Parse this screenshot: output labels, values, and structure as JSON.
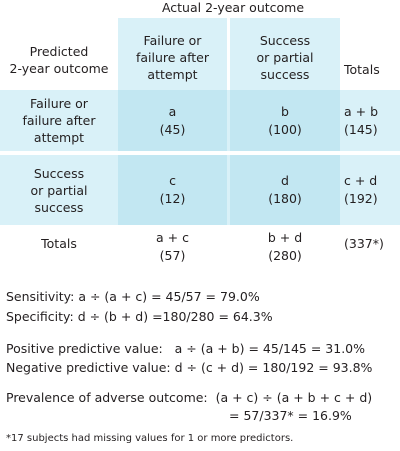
{
  "table": {
    "top_header": "Actual 2-year outcome",
    "col1_header": [
      "Failure or",
      "failure after",
      "attempt"
    ],
    "col2_header": [
      "Success",
      "or partial",
      "success"
    ],
    "row_header": [
      "Predicted",
      "2-year outcome"
    ],
    "totals_header": "Totals",
    "row1_label": [
      "Failure or",
      "failure after",
      "attempt"
    ],
    "row2_label": [
      "Success",
      "or partial",
      "success"
    ],
    "cells": {
      "a": {
        "letter": "a",
        "value": "(45)"
      },
      "b": {
        "letter": "b",
        "value": "(100)"
      },
      "c": {
        "letter": "c",
        "value": "(12)"
      },
      "d": {
        "letter": "d",
        "value": "(180)"
      }
    },
    "row_totals": [
      {
        "formula": "a + b",
        "value": "(145)"
      },
      {
        "formula": "c + d",
        "value": "(192)"
      }
    ],
    "bottom_totals_label": "Totals",
    "col_totals": [
      {
        "formula": "a + c",
        "value": "(57)"
      },
      {
        "formula": "b + d",
        "value": "(280)"
      }
    ],
    "grand_total": "(337*)"
  },
  "metrics": {
    "sensitivity": "Sensitivity: a ÷ (a + c) = 45/57 = 79.0%",
    "specificity": "Specificity: d ÷ (b + d) =180/280 = 64.3%",
    "ppv": "Positive predictive value:   a ÷ (a + b) = 45/145 = 31.0%",
    "npv": "Negative predictive value: d ÷ (c + d) = 180/192 = 93.8%",
    "prevalence_1": "Prevalence of adverse outcome:  (a + c) ÷ (a + b + c + d)",
    "prevalence_2": "= 57/337* = 16.9%"
  },
  "footnote": "*17 subjects had missing values for 1 or more predictors."
}
